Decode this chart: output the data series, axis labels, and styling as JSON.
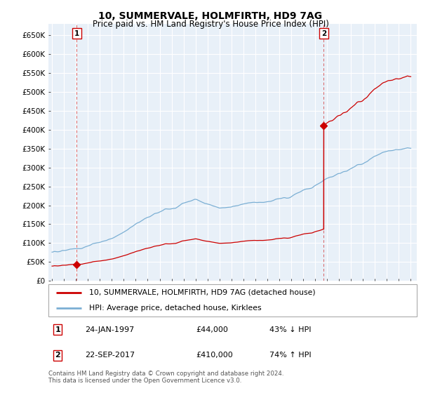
{
  "title": "10, SUMMERVALE, HOLMFIRTH, HD9 7AG",
  "subtitle": "Price paid vs. HM Land Registry's House Price Index (HPI)",
  "sale1_label": "24-JAN-1997",
  "sale1_price": 44000,
  "sale1_year": 1997.07,
  "sale1_hpi_pct": "43% ↓ HPI",
  "sale2_label": "22-SEP-2017",
  "sale2_price": 410000,
  "sale2_year": 2017.72,
  "sale2_hpi_pct": "74% ↑ HPI",
  "legend_house": "10, SUMMERVALE, HOLMFIRTH, HD9 7AG (detached house)",
  "legend_hpi": "HPI: Average price, detached house, Kirklees",
  "footer": "Contains HM Land Registry data © Crown copyright and database right 2024.\nThis data is licensed under the Open Government Licence v3.0.",
  "ylim": [
    0,
    680000
  ],
  "yticks": [
    0,
    50000,
    100000,
    150000,
    200000,
    250000,
    300000,
    350000,
    400000,
    450000,
    500000,
    550000,
    600000,
    650000
  ],
  "xlim_start": 1994.7,
  "xlim_end": 2025.5,
  "hpi_color": "#7bafd4",
  "house_color": "#cc0000",
  "marker_color": "#cc0000",
  "dashed_color": "#cc0000",
  "bg_color": "#e8f0f8",
  "grid_color": "#ffffff",
  "box_color": "#cc0000"
}
